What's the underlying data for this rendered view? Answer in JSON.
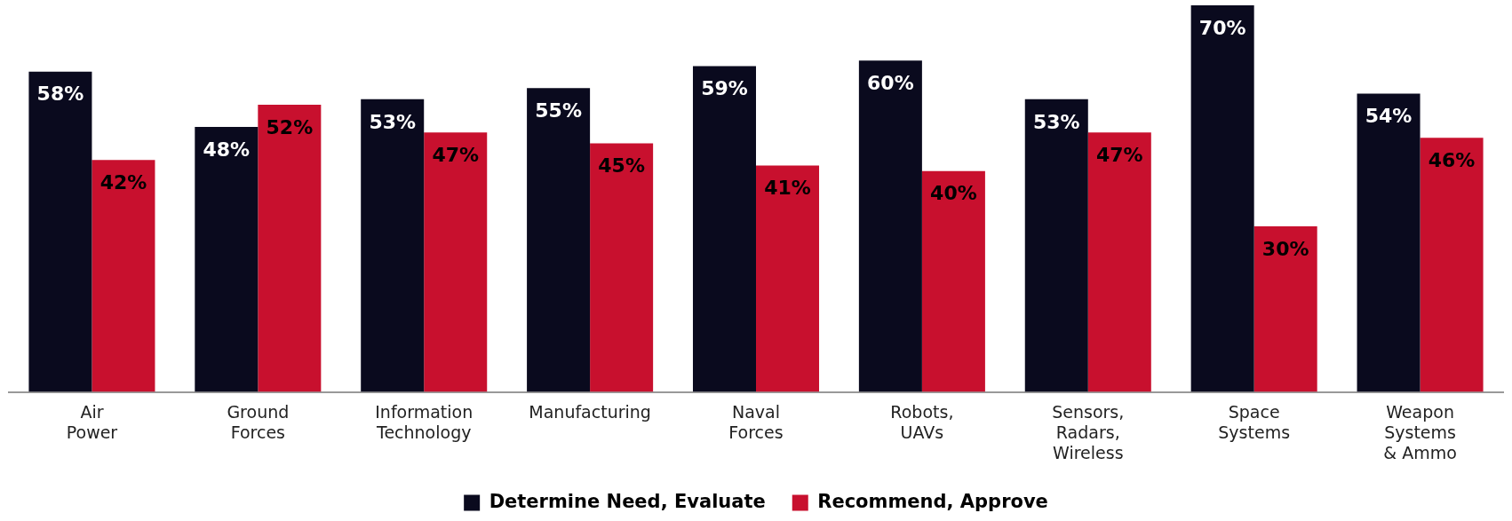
{
  "chart_data": {
    "type": "bar",
    "categories": [
      "Air Power",
      "Ground Forces",
      "Information Technology",
      "Manufacturing",
      "Naval Forces",
      "Robots, UAVs",
      "Sensors, Radars, Wireless",
      "Space Systems",
      "Weapon Systems & Ammo"
    ],
    "series": [
      {
        "name": "Determine Need, Evaluate",
        "color": "#0a0a1e",
        "values": [
          58,
          48,
          53,
          55,
          59,
          60,
          53,
          70,
          54
        ],
        "value_labels": [
          "58%",
          "48%",
          "53%",
          "55%",
          "59%",
          "60%",
          "53%",
          "70%",
          "54%"
        ]
      },
      {
        "name": "Recommend, Approve",
        "color": "#c8102e",
        "values": [
          42,
          52,
          47,
          45,
          41,
          40,
          47,
          30,
          46
        ],
        "value_labels": [
          "42%",
          "52%",
          "47%",
          "45%",
          "41%",
          "40%",
          "47%",
          "30%",
          "46%"
        ]
      }
    ],
    "legend": "bottom",
    "grid": false
  }
}
